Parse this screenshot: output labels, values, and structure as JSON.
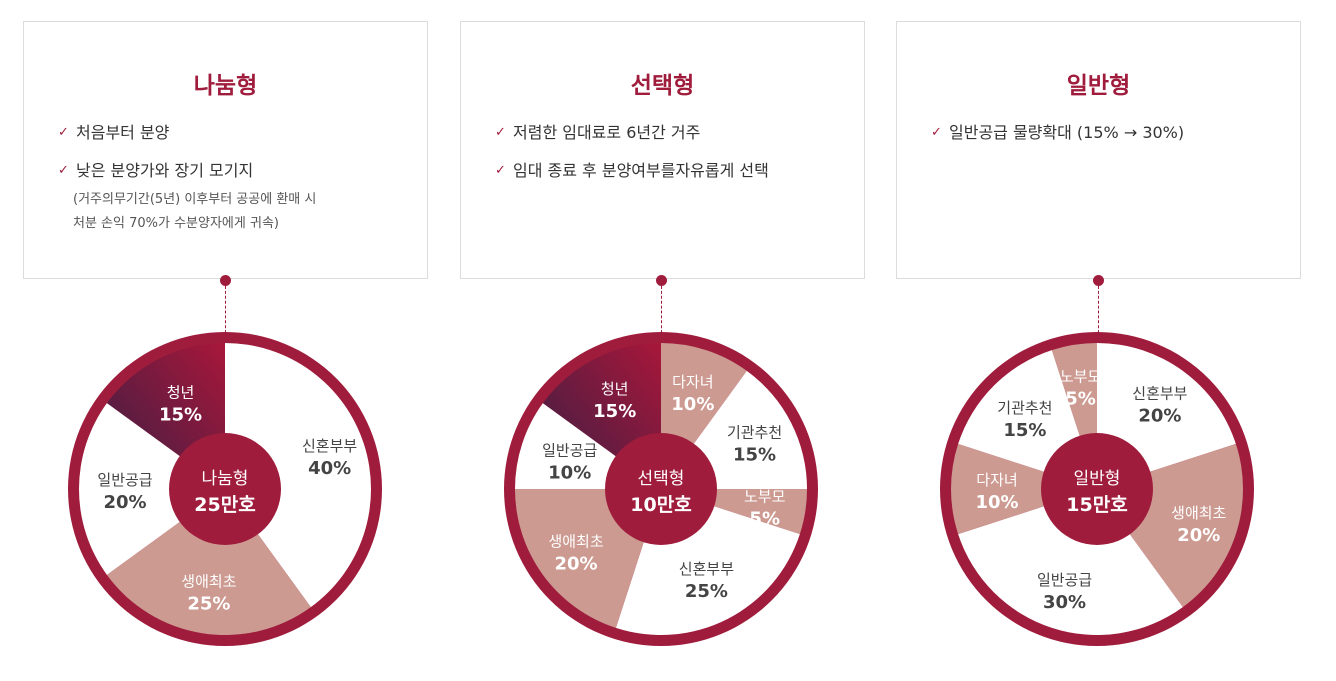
{
  "cards": [
    {
      "title": "나눔형",
      "bullets": [
        {
          "text": "처음부터 분양"
        },
        {
          "text": "낮은 분양가와 장기 모기지",
          "note_1": "(거주의무기간(5년) 이후부터 공공에 환매 시",
          "note_2": "처분 손익 70%가 수분양자에게 귀속)"
        }
      ]
    },
    {
      "title": "선택형",
      "bullets": [
        {
          "text": "저렴한 임대료로 6년간 거주"
        },
        {
          "text": "임대 종료 후 분양여부를자유롭게 선택"
        }
      ]
    },
    {
      "title": "일반형",
      "bullets": [
        {
          "text": "일반공급 물량확대 (15% → 30%)"
        }
      ]
    }
  ],
  "icons": {
    "bullet": "checkmark-icon"
  },
  "colors": {
    "accent": "#a01c3c",
    "ring": "#a01c3c",
    "youth_gradient_start": "#a8173a",
    "youth_gradient_end": "#3a1f44",
    "rose": "#cc9a91",
    "white": "#ffffff",
    "center": "#a01c3c"
  },
  "chart_data": [
    {
      "type": "pie",
      "center_label_1": "나눔형",
      "center_label_2": "25만호",
      "slices": [
        {
          "name": "청년",
          "pct_label": "15%",
          "value": 15,
          "style": "youth"
        },
        {
          "name": "신혼부부",
          "pct_label": "40%",
          "value": 40,
          "style": "white"
        },
        {
          "name": "생애최초",
          "pct_label": "25%",
          "value": 25,
          "style": "rose"
        },
        {
          "name": "일반공급",
          "pct_label": "20%",
          "value": 20,
          "style": "white"
        }
      ]
    },
    {
      "type": "pie",
      "center_label_1": "선택형",
      "center_label_2": "10만호",
      "slices": [
        {
          "name": "다자녀",
          "pct_label": "10%",
          "value": 10,
          "style": "rose"
        },
        {
          "name": "기관추천",
          "pct_label": "15%",
          "value": 15,
          "style": "white"
        },
        {
          "name": "노부모",
          "pct_label": "5%",
          "value": 5,
          "style": "rose"
        },
        {
          "name": "신혼부부",
          "pct_label": "25%",
          "value": 25,
          "style": "white"
        },
        {
          "name": "생애최초",
          "pct_label": "20%",
          "value": 20,
          "style": "rose"
        },
        {
          "name": "일반공급",
          "pct_label": "10%",
          "value": 10,
          "style": "white"
        },
        {
          "name": "청년",
          "pct_label": "15%",
          "value": 15,
          "style": "youth"
        }
      ]
    },
    {
      "type": "pie",
      "center_label_1": "일반형",
      "center_label_2": "15만호",
      "slices": [
        {
          "name": "신혼부부",
          "pct_label": "20%",
          "value": 20,
          "style": "white"
        },
        {
          "name": "생애최초",
          "pct_label": "20%",
          "value": 20,
          "style": "rose"
        },
        {
          "name": "일반공급",
          "pct_label": "30%",
          "value": 30,
          "style": "white"
        },
        {
          "name": "다자녀",
          "pct_label": "10%",
          "value": 10,
          "style": "rose"
        },
        {
          "name": "기관추천",
          "pct_label": "15%",
          "value": 15,
          "style": "white"
        },
        {
          "name": "노부모",
          "pct_label": "5%",
          "value": 5,
          "style": "rose"
        }
      ]
    }
  ]
}
